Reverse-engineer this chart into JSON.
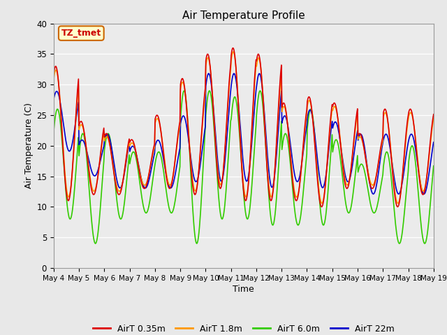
{
  "title": "Air Temperature Profile",
  "xlabel": "Time",
  "ylabel": "Air Temperature (C)",
  "ylim": [
    0,
    40
  ],
  "xlim": [
    0,
    15
  ],
  "bg_color": "#e8e8e8",
  "plot_bg": "#ebebeb",
  "annotation_text": "TZ_tmet",
  "annotation_bg": "#ffffcc",
  "annotation_border": "#cc6600",
  "annotation_text_color": "#cc0000",
  "series_colors": [
    "#dd0000",
    "#ff9900",
    "#33cc00",
    "#0000cc"
  ],
  "series_labels": [
    "AirT 0.35m",
    "AirT 1.8m",
    "AirT 6.0m",
    "AirT 22m"
  ],
  "x_tick_labels": [
    "May 4",
    "May 5",
    "May 6",
    "May 7",
    "May 8",
    "May 9",
    "May 10",
    "May 11",
    "May 12",
    "May 13",
    "May 14",
    "May 15",
    "May 16",
    "May 17",
    "May 18",
    "May 19"
  ],
  "x_tick_positions": [
    0,
    1,
    2,
    3,
    4,
    5,
    6,
    7,
    8,
    9,
    10,
    11,
    12,
    13,
    14,
    15
  ],
  "yticks": [
    0,
    5,
    10,
    15,
    20,
    25,
    30,
    35,
    40
  ],
  "linewidth": 1.2
}
